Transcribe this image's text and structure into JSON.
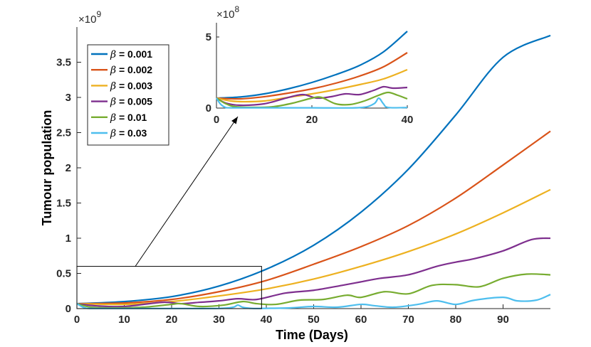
{
  "chart_data": [
    {
      "type": "line",
      "role": "main",
      "xlabel": "Time (Days)",
      "ylabel": "Tumour population",
      "xlim": [
        0,
        100
      ],
      "ylim": [
        0,
        4.0
      ],
      "y_exponent_label": "×10",
      "y_exponent_power": "9",
      "xticks": [
        0,
        10,
        20,
        30,
        40,
        50,
        60,
        70,
        80,
        90
      ],
      "xtick_labels": [
        "0",
        "10",
        "20",
        "30",
        "40",
        "50",
        "60",
        "70",
        "80",
        "90"
      ],
      "yticks": [
        0,
        0.5,
        1,
        1.5,
        2,
        2.5,
        3,
        3.5
      ],
      "ytick_labels": [
        "0",
        "0.5",
        "1",
        "1.5",
        "2",
        "2.5",
        "3",
        "3.5"
      ],
      "zoom_box": {
        "x": [
          0,
          39
        ],
        "y": [
          0,
          0.6
        ]
      },
      "legend": {
        "placement": "top-left",
        "entries": [
          "β = 0.001",
          "β = 0.002",
          "β = 0.003",
          "β = 0.005",
          "β = 0.01",
          "β = 0.03"
        ],
        "symbol": "β",
        "texts": [
          " = 0.001",
          " = 0.002",
          " = 0.003",
          " = 0.005",
          " = 0.01",
          " = 0.03"
        ]
      },
      "series": [
        {
          "name": "β = 0.001",
          "color": "#0072BD",
          "x": [
            0,
            10,
            20,
            30,
            40,
            50,
            60,
            70,
            80,
            90,
            100
          ],
          "y": [
            0.07,
            0.1,
            0.17,
            0.32,
            0.56,
            0.9,
            1.37,
            1.98,
            2.75,
            3.57,
            3.88
          ]
        },
        {
          "name": "β = 0.002",
          "color": "#D95319",
          "x": [
            0,
            10,
            20,
            30,
            40,
            50,
            60,
            70,
            80,
            90,
            100
          ],
          "y": [
            0.07,
            0.08,
            0.13,
            0.24,
            0.4,
            0.63,
            0.88,
            1.18,
            1.57,
            2.04,
            2.52
          ]
        },
        {
          "name": "β = 0.003",
          "color": "#EDB120",
          "x": [
            0,
            10,
            20,
            30,
            40,
            50,
            60,
            70,
            80,
            90,
            100
          ],
          "y": [
            0.07,
            0.06,
            0.1,
            0.18,
            0.28,
            0.42,
            0.6,
            0.81,
            1.06,
            1.36,
            1.69
          ]
        },
        {
          "name": "β = 0.005",
          "color": "#7E2F8E",
          "x": [
            0,
            4,
            10,
            18,
            22,
            26,
            30,
            34,
            38,
            44,
            50,
            56,
            60,
            64,
            70,
            76,
            80,
            84,
            90,
            96,
            100
          ],
          "y": [
            0.07,
            0.04,
            0.03,
            0.09,
            0.07,
            0.09,
            0.11,
            0.14,
            0.13,
            0.22,
            0.26,
            0.33,
            0.38,
            0.43,
            0.48,
            0.6,
            0.66,
            0.71,
            0.82,
            0.98,
            1.0
          ]
        },
        {
          "name": "β = 0.01",
          "color": "#77AC30",
          "x": [
            0,
            3,
            8,
            14,
            20,
            22,
            26,
            31,
            35,
            38,
            42,
            47,
            52,
            57,
            60,
            65,
            70,
            75,
            80,
            85,
            90,
            95,
            100
          ],
          "y": [
            0.07,
            0.02,
            0.01,
            0.02,
            0.06,
            0.07,
            0.03,
            0.05,
            0.1,
            0.07,
            0.06,
            0.12,
            0.13,
            0.19,
            0.16,
            0.24,
            0.21,
            0.33,
            0.34,
            0.31,
            0.43,
            0.49,
            0.48
          ]
        },
        {
          "name": "β = 0.03",
          "color": "#4DBEEE",
          "x": [
            0,
            1,
            2,
            4,
            10,
            20,
            30,
            33,
            34,
            35,
            37,
            40,
            45,
            50,
            55,
            60,
            63,
            67,
            72,
            76,
            80,
            84,
            90,
            93,
            97,
            100
          ],
          "y": [
            0.07,
            0.03,
            0.006,
            0.002,
            0.002,
            0.002,
            0.003,
            0.02,
            0.05,
            0.02,
            0.003,
            0.004,
            0.01,
            0.03,
            0.02,
            0.06,
            0.04,
            0.02,
            0.06,
            0.11,
            0.06,
            0.12,
            0.16,
            0.11,
            0.12,
            0.2
          ]
        }
      ]
    },
    {
      "type": "line",
      "role": "inset",
      "xlim": [
        0,
        40
      ],
      "ylim": [
        0,
        6
      ],
      "y_exponent_label": "×10",
      "y_exponent_power": "8",
      "xticks": [
        0,
        20,
        40
      ],
      "xtick_labels": [
        "0",
        "20",
        "40"
      ],
      "yticks": [
        0,
        5
      ],
      "ytick_labels": [
        "0",
        "5"
      ],
      "series": [
        {
          "name": "β = 0.001",
          "color": "#0072BD",
          "x": [
            0,
            5,
            10,
            15,
            20,
            25,
            30,
            35,
            40
          ],
          "y": [
            0.7,
            0.78,
            1.0,
            1.35,
            1.8,
            2.35,
            3.0,
            3.95,
            5.4
          ]
        },
        {
          "name": "β = 0.002",
          "color": "#D95319",
          "x": [
            0,
            5,
            10,
            15,
            20,
            25,
            30,
            35,
            40
          ],
          "y": [
            0.7,
            0.65,
            0.8,
            1.05,
            1.35,
            1.75,
            2.25,
            2.9,
            3.9
          ]
        },
        {
          "name": "β = 0.003",
          "color": "#EDB120",
          "x": [
            0,
            3,
            6,
            10,
            15,
            20,
            25,
            30,
            35,
            40
          ],
          "y": [
            0.7,
            0.5,
            0.45,
            0.5,
            0.75,
            1.0,
            1.3,
            1.65,
            2.05,
            2.7
          ]
        },
        {
          "name": "β = 0.005",
          "color": "#7E2F8E",
          "x": [
            0,
            2,
            5,
            10,
            14,
            18,
            21,
            24,
            27,
            30,
            33,
            35,
            37,
            40
          ],
          "y": [
            0.7,
            0.35,
            0.2,
            0.3,
            0.65,
            0.95,
            0.7,
            0.8,
            1.0,
            0.95,
            1.25,
            1.5,
            1.4,
            1.45
          ]
        },
        {
          "name": "β = 0.01",
          "color": "#77AC30",
          "x": [
            0,
            2,
            4,
            8,
            12,
            16,
            20,
            22,
            25,
            28,
            31,
            34,
            36,
            38,
            40
          ],
          "y": [
            0.7,
            0.3,
            0.1,
            0.05,
            0.1,
            0.35,
            0.7,
            0.75,
            0.3,
            0.25,
            0.5,
            0.9,
            1.1,
            0.9,
            0.65
          ]
        },
        {
          "name": "β = 0.03",
          "color": "#4DBEEE",
          "x": [
            0,
            0.8,
            1.8,
            3,
            10,
            20,
            30,
            33,
            34,
            35,
            36,
            40
          ],
          "y": [
            0.7,
            0.3,
            0.06,
            0.02,
            0.02,
            0.02,
            0.03,
            0.3,
            0.7,
            0.3,
            0.04,
            0.04
          ]
        }
      ]
    }
  ]
}
